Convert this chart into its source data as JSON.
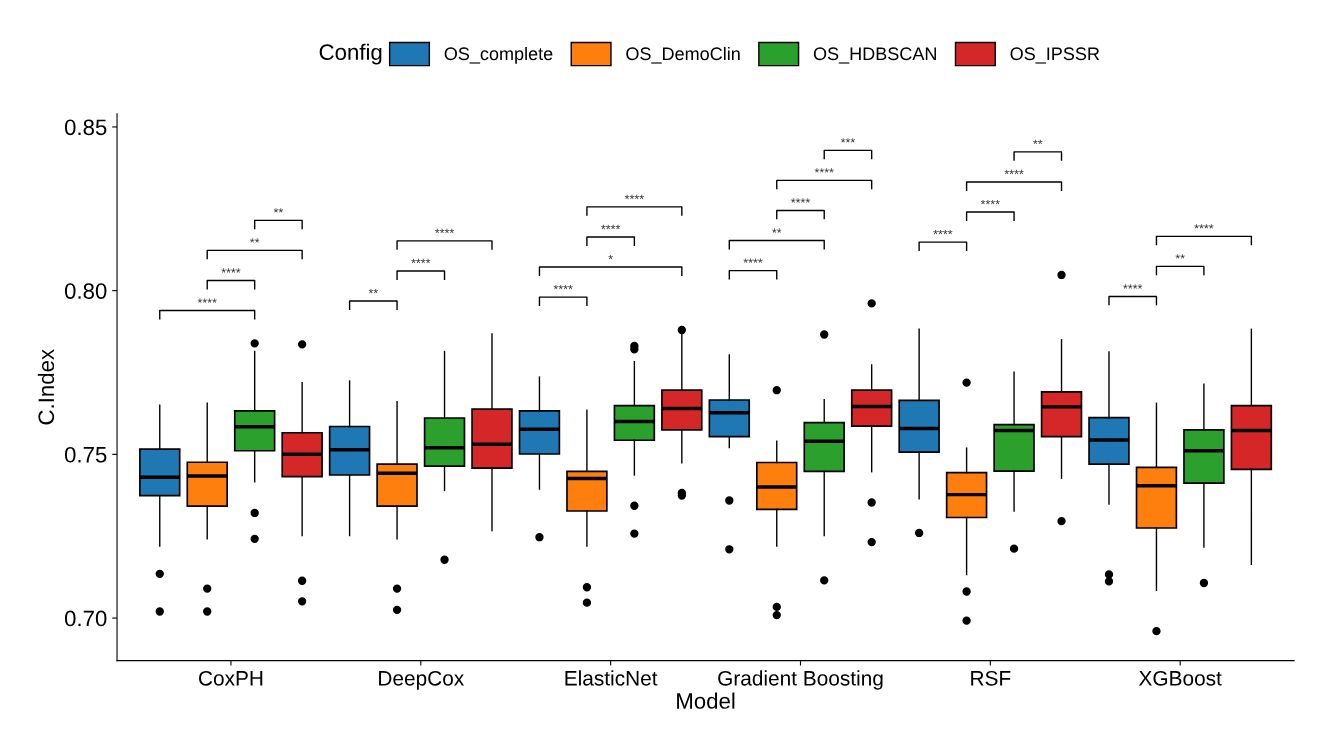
{
  "chart_data": {
    "type": "box",
    "xlabel": "Model",
    "ylabel": "C.Index",
    "legend_title": "Config",
    "legend": "top",
    "grid": false,
    "categories": [
      "CoxPH",
      "DeepCox",
      "ElasticNet",
      "Gradient Boosting",
      "RSF",
      "XGBoost"
    ],
    "ylim": [
      0.687,
      0.854
    ],
    "yticks": [
      {
        "value": 0.7,
        "label": "0.70"
      },
      {
        "value": 0.75,
        "label": "0.75"
      },
      {
        "value": 0.8,
        "label": "0.80"
      },
      {
        "value": 0.85,
        "label": "0.85"
      }
    ],
    "series": [
      {
        "name": "OS_complete",
        "color": "#1f77b4",
        "boxes": [
          {
            "low": 0.722,
            "q1": 0.7374,
            "median": 0.743,
            "q3": 0.7516,
            "high": 0.765,
            "outliers": [
              0.7135,
              0.702
            ]
          },
          {
            "low": 0.7252,
            "q1": 0.7437,
            "median": 0.7514,
            "q3": 0.7585,
            "high": 0.7724
          },
          {
            "low": 0.7394,
            "q1": 0.7501,
            "median": 0.7577,
            "q3": 0.7633,
            "high": 0.7736,
            "outliers": [
              0.7247
            ]
          },
          {
            "low": 0.7521,
            "q1": 0.7554,
            "median": 0.7627,
            "q3": 0.7666,
            "high": 0.7804,
            "outliers": [
              0.7359,
              0.721
            ]
          },
          {
            "low": 0.7364,
            "q1": 0.7507,
            "median": 0.7579,
            "q3": 0.7665,
            "high": 0.7882,
            "outliers": [
              0.726
            ]
          },
          {
            "low": 0.7348,
            "q1": 0.747,
            "median": 0.7544,
            "q3": 0.7612,
            "high": 0.7813,
            "outliers": [
              0.7133,
              0.7112
            ]
          }
        ]
      },
      {
        "name": "OS_DemoClin",
        "color": "#ff7f0e",
        "boxes": [
          {
            "low": 0.7242,
            "q1": 0.7342,
            "median": 0.7434,
            "q3": 0.7476,
            "high": 0.7656,
            "outliers": [
              0.709,
              0.702
            ]
          },
          {
            "low": 0.7242,
            "q1": 0.7342,
            "median": 0.7442,
            "q3": 0.747,
            "high": 0.7661,
            "outliers": [
              0.709,
              0.7025
            ]
          },
          {
            "low": 0.722,
            "q1": 0.7327,
            "median": 0.7426,
            "q3": 0.7448,
            "high": 0.7635,
            "outliers": [
              0.7094,
              0.7047
            ]
          },
          {
            "low": 0.722,
            "q1": 0.7332,
            "median": 0.74,
            "q3": 0.7475,
            "high": 0.754,
            "outliers": [
              0.7696,
              0.7034,
              0.7009
            ]
          },
          {
            "low": 0.7133,
            "q1": 0.7307,
            "median": 0.7377,
            "q3": 0.7444,
            "high": 0.7519,
            "outliers": [
              0.7719,
              0.7081,
              0.6992
            ]
          },
          {
            "low": 0.7085,
            "q1": 0.7275,
            "median": 0.7404,
            "q3": 0.746,
            "high": 0.7656,
            "outliers": [
              0.696
            ]
          }
        ]
      },
      {
        "name": "OS_HDBSCAN",
        "color": "#2ca02c",
        "boxes": [
          {
            "low": 0.7416,
            "q1": 0.7511,
            "median": 0.7584,
            "q3": 0.7633,
            "high": 0.7814,
            "outliers": [
              0.7839,
              0.7321,
              0.7242
            ]
          },
          {
            "low": 0.739,
            "q1": 0.7464,
            "median": 0.752,
            "q3": 0.7611,
            "high": 0.7814,
            "outliers": [
              0.7178
            ]
          },
          {
            "low": 0.7437,
            "q1": 0.7543,
            "median": 0.76,
            "q3": 0.7649,
            "high": 0.7783,
            "outliers": [
              0.7831,
              0.7821,
              0.7343,
              0.7258
            ]
          },
          {
            "low": 0.7252,
            "q1": 0.7448,
            "median": 0.754,
            "q3": 0.7597,
            "high": 0.7667,
            "outliers": [
              0.7866,
              0.7115
            ]
          },
          {
            "low": 0.7327,
            "q1": 0.7449,
            "median": 0.7573,
            "q3": 0.7591,
            "high": 0.7751,
            "outliers": [
              0.7212
            ]
          },
          {
            "low": 0.7217,
            "q1": 0.7412,
            "median": 0.7511,
            "q3": 0.7575,
            "high": 0.7714,
            "outliers": [
              0.7107
            ]
          }
        ]
      },
      {
        "name": "OS_IPSSR",
        "color": "#d62728",
        "boxes": [
          {
            "low": 0.7252,
            "q1": 0.7432,
            "median": 0.75,
            "q3": 0.7566,
            "high": 0.7719,
            "outliers": [
              0.7836,
              0.7114,
              0.7051
            ]
          },
          {
            "low": 0.7267,
            "q1": 0.7458,
            "median": 0.7531,
            "q3": 0.7638,
            "high": 0.7868
          },
          {
            "low": 0.7474,
            "q1": 0.7575,
            "median": 0.764,
            "q3": 0.7696,
            "high": 0.787,
            "outliers": [
              0.788,
              0.7382,
              0.7374
            ]
          },
          {
            "low": 0.7447,
            "q1": 0.7586,
            "median": 0.7646,
            "q3": 0.7696,
            "high": 0.7773,
            "outliers": [
              0.7961,
              0.7353,
              0.7232
            ]
          },
          {
            "low": 0.7427,
            "q1": 0.7554,
            "median": 0.7645,
            "q3": 0.7691,
            "high": 0.785,
            "outliers": [
              0.8048,
              0.7296
            ]
          },
          {
            "low": 0.7164,
            "q1": 0.7454,
            "median": 0.7573,
            "q3": 0.7649,
            "high": 0.7882
          }
        ]
      }
    ],
    "annotations": [
      "****",
      "****",
      "**",
      "**",
      "**",
      "****",
      "****",
      "****",
      "*",
      "****",
      "****",
      "****",
      "**",
      "****",
      "****",
      "***",
      "****",
      "****",
      "****",
      "**",
      "****",
      "**",
      "****"
    ]
  }
}
